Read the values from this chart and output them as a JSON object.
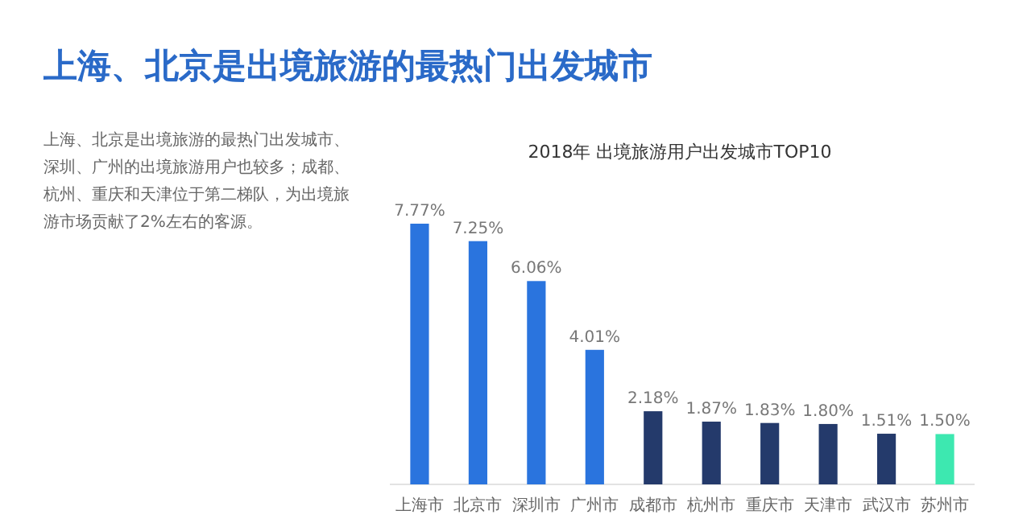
{
  "chart_data": {
    "type": "bar",
    "title": "上海、北京是出境旅游的最热门出发城市",
    "subtitle": "2018年 出境旅游用户出发城市TOP10",
    "annotations": [
      "上海、北京是出境旅游的最热门出发城市、深圳、广州的出境旅游用户也较多；成都、杭州、重庆和天津位于第二梯队，为出境旅游市场贡献了2%左右的客源。"
    ],
    "categories": [
      "上海市",
      "北京市",
      "深圳市",
      "广州市",
      "成都市",
      "杭州市",
      "重庆市",
      "天津市",
      "武汉市",
      "苏州市"
    ],
    "values": [
      7.77,
      7.25,
      6.06,
      4.01,
      2.18,
      1.87,
      1.83,
      1.8,
      1.51,
      1.5
    ],
    "value_labels": [
      "7.77%",
      "7.25%",
      "6.06%",
      "4.01%",
      "2.18%",
      "1.87%",
      "1.83%",
      "1.80%",
      "1.51%",
      "1.50%"
    ],
    "colors": [
      "#2a74de",
      "#2a74de",
      "#2a74de",
      "#2a74de",
      "#243a6b",
      "#243a6b",
      "#243a6b",
      "#243a6b",
      "#243a6b",
      "#3de8b0"
    ]
  }
}
